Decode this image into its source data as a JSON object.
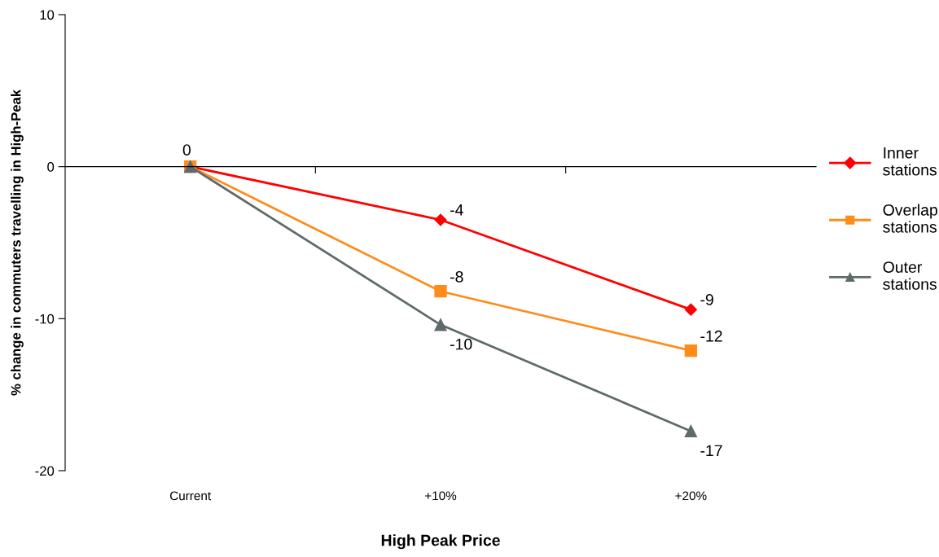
{
  "chart_data": {
    "type": "line",
    "xlabel": "High Peak Price",
    "ylabel": "% change in commuters travelling in High-Peak",
    "categories": [
      "Current",
      "+10%",
      "+20%"
    ],
    "ylim": [
      -20,
      10
    ],
    "yticks": [
      -20,
      -10,
      0,
      10
    ],
    "legend": "right",
    "series": [
      {
        "name": "Inner stations",
        "color": "#ff0000",
        "marker": "diamond",
        "values": [
          0,
          -3.5,
          -9.4
        ],
        "value_labels": [
          "0",
          "-4",
          "-9"
        ]
      },
      {
        "name": "Overlap stations",
        "color": "#ff8c1a",
        "marker": "square",
        "values": [
          0,
          -8.2,
          -12.1
        ],
        "value_labels": [
          null,
          "-8",
          "-12"
        ]
      },
      {
        "name": "Outer stations",
        "color": "#5f6b6a",
        "marker": "triangle",
        "values": [
          0,
          -10.4,
          -17.4
        ],
        "value_labels": [
          null,
          "-10",
          "-17"
        ]
      }
    ]
  }
}
